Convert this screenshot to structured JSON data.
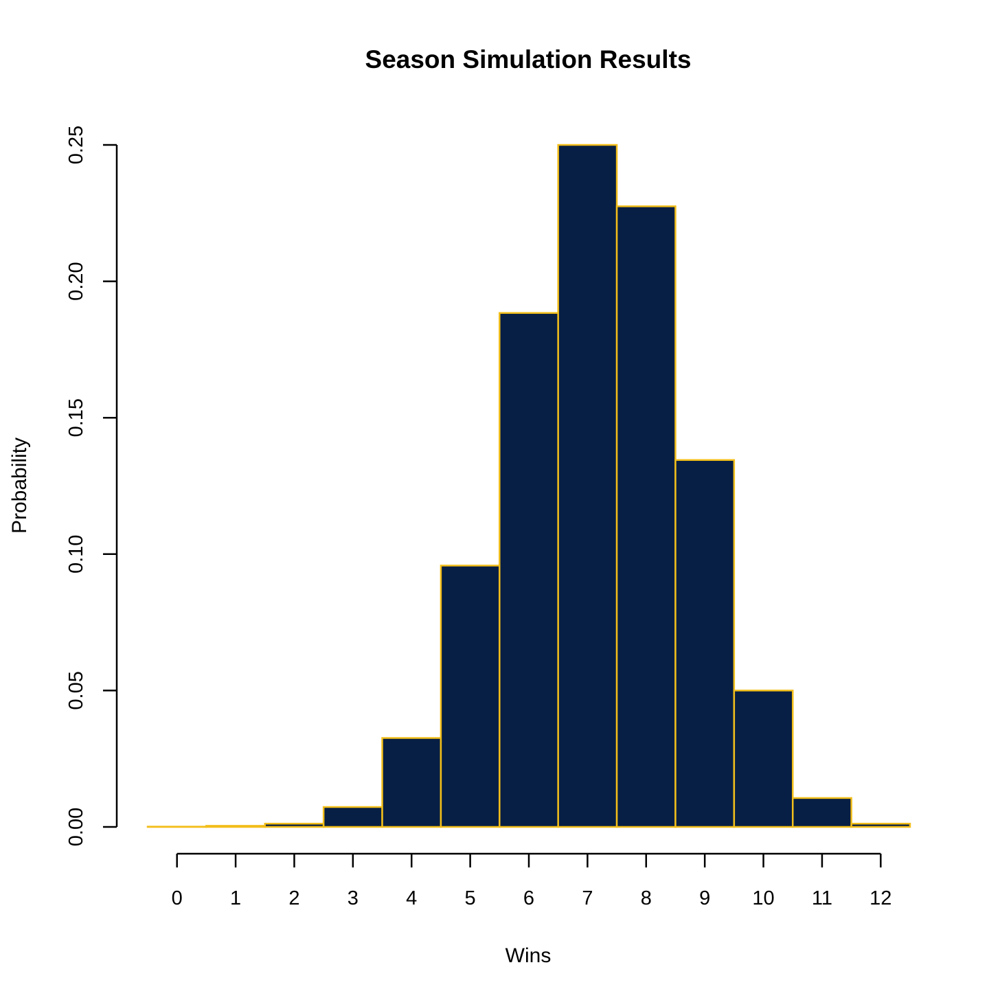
{
  "chart_data": {
    "type": "bar",
    "title": "Season Simulation Results",
    "xlabel": "Wins",
    "ylabel": "Probability",
    "categories": [
      "0",
      "1",
      "2",
      "3",
      "4",
      "5",
      "6",
      "7",
      "8",
      "9",
      "10",
      "11",
      "12"
    ],
    "values": [
      0.0001,
      0.0004,
      0.0012,
      0.0073,
      0.0326,
      0.0958,
      0.1884,
      0.25,
      0.2275,
      0.1345,
      0.05,
      0.0106,
      0.0012
    ],
    "ylim": [
      0,
      0.25
    ],
    "yticks": [
      "0.00",
      "0.05",
      "0.10",
      "0.15",
      "0.20",
      "0.25"
    ],
    "ytick_values": [
      0,
      0.05,
      0.1,
      0.15,
      0.2,
      0.25
    ],
    "bar_fill": "#071F44",
    "bar_border": "#F2BE1A",
    "grid": false
  }
}
